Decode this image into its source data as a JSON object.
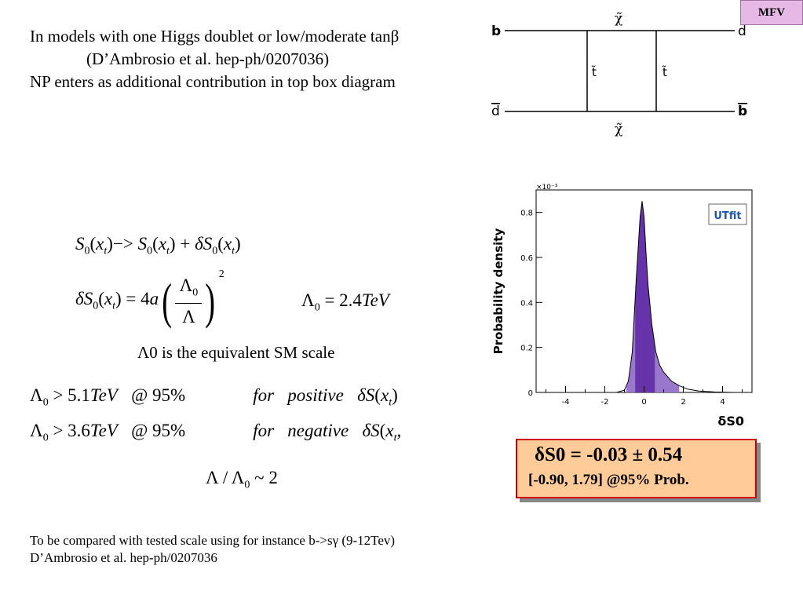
{
  "corner_tag": "MFV",
  "intro": {
    "line1": "In models with one Higgs doublet or low/moderate tanβ",
    "line2": "(D’Ambrosio et al. hep-ph/0207036)",
    "line3": "NP enters as additional contribution in top box diagram"
  },
  "box_diagram": {
    "top_left": "b",
    "top_right": "d",
    "bottom_left": "d",
    "bottom_right": "b",
    "top_propagator": "χ̃",
    "bottom_propagator": "χ̃",
    "left_propagator": "t̃",
    "right_propagator": "t̃"
  },
  "equations": {
    "eq1": "S0(xt) -> S0(xt) + δS0(xt)",
    "eq2": "δS0(xt) = 4a (Λ0/Λ)^2",
    "eq3": "Λ0 = 2.4TeV",
    "lam_note": "Λ0 is the equivalent SM scale",
    "eq4": "Λ0 > 5.1TeV @95% for positive δS(xt)",
    "eq5": "Λ0 > 3.6TeV @95% for negative δS(xt),",
    "eq6": "Λ/Λ0 ~ 2"
  },
  "footer": {
    "line1": "To be compared with tested scale using for instance b->sγ (9-12Tev)",
    "line2": "D’Ambrosio et al. hep-ph/0207036"
  },
  "result_box": {
    "line1": "δS0 = -0.03 ± 0.54",
    "line2": "[-0.90, 1.79] @95% Prob."
  },
  "chart_data": {
    "type": "area",
    "ylabel": "Probability density",
    "xlabel": "δS0",
    "y_multiplier": "×10⁻³",
    "logo": "UTfit",
    "xlim": [
      -5.5,
      5.5
    ],
    "ylim": [
      0,
      0.9
    ],
    "x_ticks": [
      "-4",
      "-2",
      "0",
      "2",
      "4"
    ],
    "y_ticks": [
      "0",
      "0.2",
      "0.4",
      "0.6",
      "0.8"
    ],
    "x": [
      -4.5,
      -1.4,
      -1.0,
      -0.8,
      -0.6,
      -0.4,
      -0.2,
      -0.1,
      0.0,
      0.1,
      0.2,
      0.4,
      0.6,
      0.8,
      1.0,
      1.4,
      1.8,
      2.2,
      2.8,
      3.6,
      4.5
    ],
    "y": [
      0.0,
      0.0,
      0.01,
      0.05,
      0.18,
      0.5,
      0.78,
      0.85,
      0.78,
      0.62,
      0.48,
      0.3,
      0.18,
      0.12,
      0.09,
      0.05,
      0.03,
      0.015,
      0.006,
      0.002,
      0.0
    ],
    "bands": {
      "68": [
        -0.45,
        0.55
      ],
      "95": [
        -0.9,
        1.79
      ]
    },
    "colors": {
      "band68": "#6633aa",
      "band95": "#9977cc",
      "curve": "#000000"
    }
  }
}
